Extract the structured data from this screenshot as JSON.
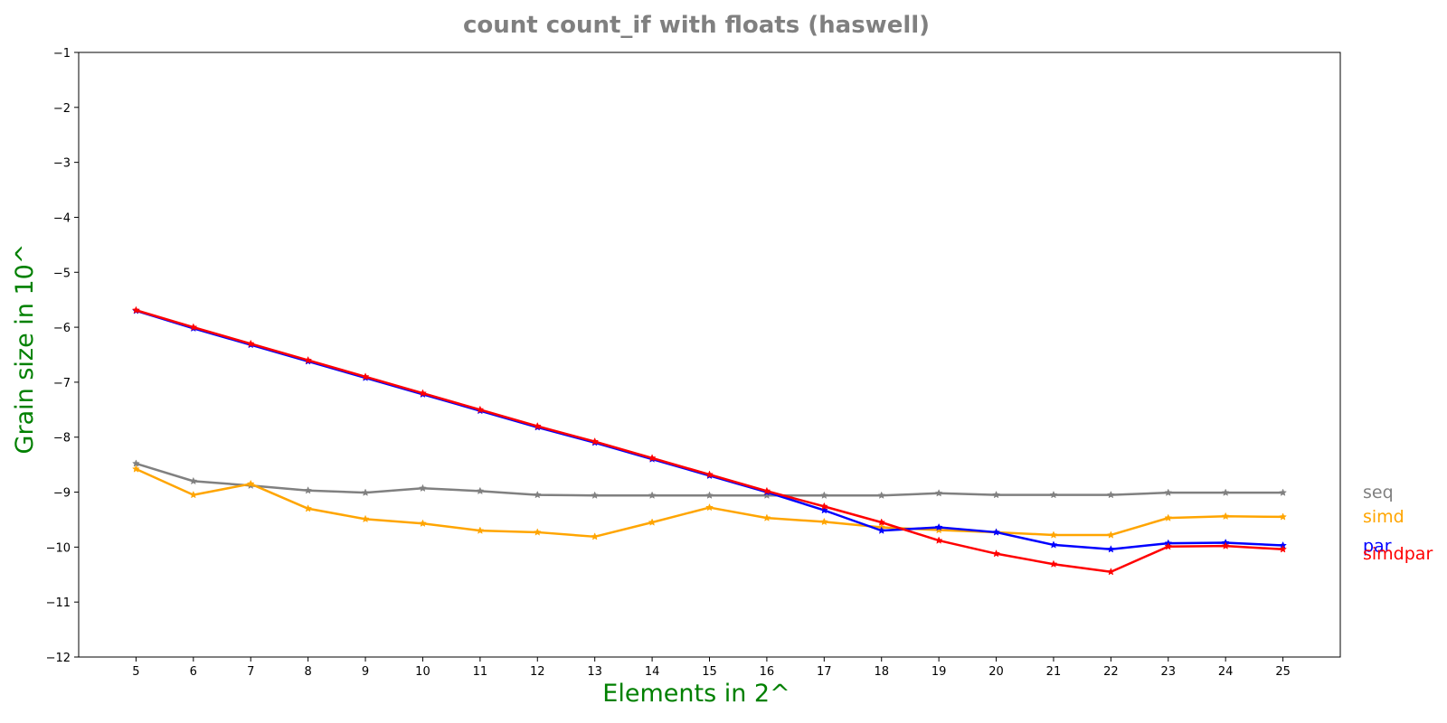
{
  "chart_data": {
    "type": "line",
    "title": "count count_if with floats  (haswell)",
    "xlabel": "Elements in 2^",
    "ylabel": "Grain size in 10^",
    "xlim": [
      4,
      26
    ],
    "ylim": [
      -12,
      -1
    ],
    "x": [
      5,
      6,
      7,
      8,
      9,
      10,
      11,
      12,
      13,
      14,
      15,
      16,
      17,
      18,
      19,
      20,
      21,
      22,
      23,
      24,
      25
    ],
    "x_tick_labels": [
      "5",
      "6",
      "7",
      "8",
      "9",
      "10",
      "11",
      "12",
      "13",
      "14",
      "15",
      "16",
      "17",
      "18",
      "19",
      "20",
      "21",
      "22",
      "23",
      "24",
      "25"
    ],
    "y_ticks": [
      -12,
      -11,
      -10,
      -9,
      -8,
      -7,
      -6,
      -5,
      -4,
      -3,
      -2,
      -1
    ],
    "y_tick_labels": [
      "−12",
      "−11",
      "−10",
      "−9",
      "−8",
      "−7",
      "−6",
      "−5",
      "−4",
      "−3",
      "−2",
      "−1"
    ],
    "grid": false,
    "legend_placement": "right, outside plot, labels at line ends",
    "marker": "star",
    "series": [
      {
        "name": "seq",
        "color": "#808080",
        "values": [
          -8.48,
          -8.8,
          -8.88,
          -8.97,
          -9.01,
          -8.93,
          -8.98,
          -9.05,
          -9.06,
          -9.06,
          -9.06,
          -9.06,
          -9.06,
          -9.06,
          -9.02,
          -9.05,
          -9.05,
          -9.05,
          -9.01,
          -9.01,
          -9.01
        ]
      },
      {
        "name": "simd",
        "color": "#ffa500",
        "values": [
          -8.58,
          -9.05,
          -8.85,
          -9.3,
          -9.49,
          -9.57,
          -9.7,
          -9.73,
          -9.81,
          -9.55,
          -9.28,
          -9.47,
          -9.54,
          -9.64,
          -9.69,
          -9.73,
          -9.78,
          -9.78,
          -9.47,
          -9.44,
          -9.45
        ]
      },
      {
        "name": "par",
        "color": "#0000ff",
        "values": [
          -5.7,
          -6.02,
          -6.32,
          -6.62,
          -6.92,
          -7.22,
          -7.52,
          -7.82,
          -8.1,
          -8.4,
          -8.7,
          -9.0,
          -9.33,
          -9.7,
          -9.64,
          -9.73,
          -9.96,
          -10.04,
          -9.93,
          -9.92,
          -9.97
        ]
      },
      {
        "name": "simdpar",
        "color": "#ff0000",
        "values": [
          -5.69,
          -6.0,
          -6.3,
          -6.6,
          -6.9,
          -7.2,
          -7.5,
          -7.8,
          -8.08,
          -8.38,
          -8.68,
          -8.98,
          -9.26,
          -9.55,
          -9.88,
          -10.12,
          -10.31,
          -10.45,
          -9.99,
          -9.98,
          -10.04
        ]
      }
    ]
  }
}
